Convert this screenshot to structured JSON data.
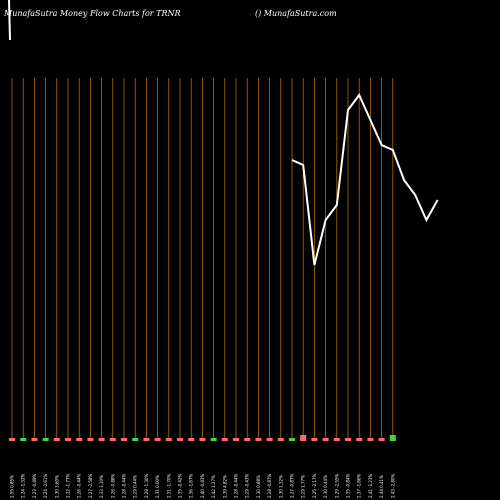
{
  "header": {
    "left": "MunafaSutra  Money Flow  Charts for TRNR",
    "right": "() MunafaSutra.com"
  },
  "chart_data": {
    "type": "bar",
    "title": "MunafaSutra  Money Flow  Charts for TRNR",
    "categories": [
      "2.55 0.85%",
      "2.24 -1.32%",
      "2.23 -0.89%",
      "2.24 -2.61%",
      "2.30 3.60%",
      "2.22 -1.77%",
      "2.26 -0.44%",
      "2.27 -2.58%",
      "2.33 3.10%",
      "2.26 -0.88%",
      "2.28 -0.44%",
      "2.29 0.44%",
      "2.28 -1.30%",
      "2.31 0.00%",
      "2.31 -1.70%",
      "2.35 -0.42%",
      "2.36 -1.67%",
      "2.40 -0.83%",
      "2.42 1.27%",
      "2.39 4.82%",
      "2.28 -0.44%",
      "2.29 -0.43%",
      "2.30 0.88%",
      "2.28 -0.87%",
      "2.30 1.32%",
      "2.27 -0.87%",
      "2.29 1.77%",
      "2.25 -2.17%",
      "2.30 0.44%",
      "2.29 -2.55%",
      "2.35 -0.84%",
      "2.37 -1.66%",
      "2.41 -1.23%",
      "2.44 0.41%",
      "2.43 -2.80%"
    ],
    "bar_colors": [
      "red",
      "green",
      "red",
      "green",
      "red",
      "red",
      "red",
      "red",
      "red",
      "red",
      "red",
      "green",
      "red",
      "red",
      "red",
      "red",
      "red",
      "red",
      "green",
      "red",
      "red",
      "red",
      "red",
      "red",
      "red",
      "green",
      "red",
      "red",
      "red",
      "red",
      "red",
      "red",
      "red",
      "red",
      "green"
    ],
    "bar_heights": [
      1,
      1,
      1,
      1,
      1,
      1,
      1,
      1,
      1,
      1,
      1,
      1,
      1,
      1,
      1,
      1,
      1,
      1,
      1,
      1,
      1,
      1,
      1,
      1,
      1,
      1,
      2,
      1,
      1,
      1,
      1,
      1,
      1,
      1,
      2
    ],
    "line": [
      {
        "i": 25,
        "y": 32
      },
      {
        "i": 26,
        "y": 33
      },
      {
        "i": 27,
        "y": 53
      },
      {
        "i": 28,
        "y": 44
      },
      {
        "i": 29,
        "y": 41
      },
      {
        "i": 30,
        "y": 22
      },
      {
        "i": 31,
        "y": 19
      },
      {
        "i": 32,
        "y": 24
      },
      {
        "i": 33,
        "y": 29
      },
      {
        "i": 34,
        "y": 30
      },
      {
        "i": 35,
        "y": 36
      },
      {
        "i": 36,
        "y": 39
      },
      {
        "i": 37,
        "y": 44
      },
      {
        "i": 38,
        "y": 40
      }
    ],
    "ylim": [
      0,
      100
    ],
    "grid": true,
    "colors": {
      "grid": "#b36b00",
      "line": "#ffffff",
      "bar_red": "#ff6b6b",
      "bar_green": "#3dd93d",
      "background": "#000000"
    }
  }
}
